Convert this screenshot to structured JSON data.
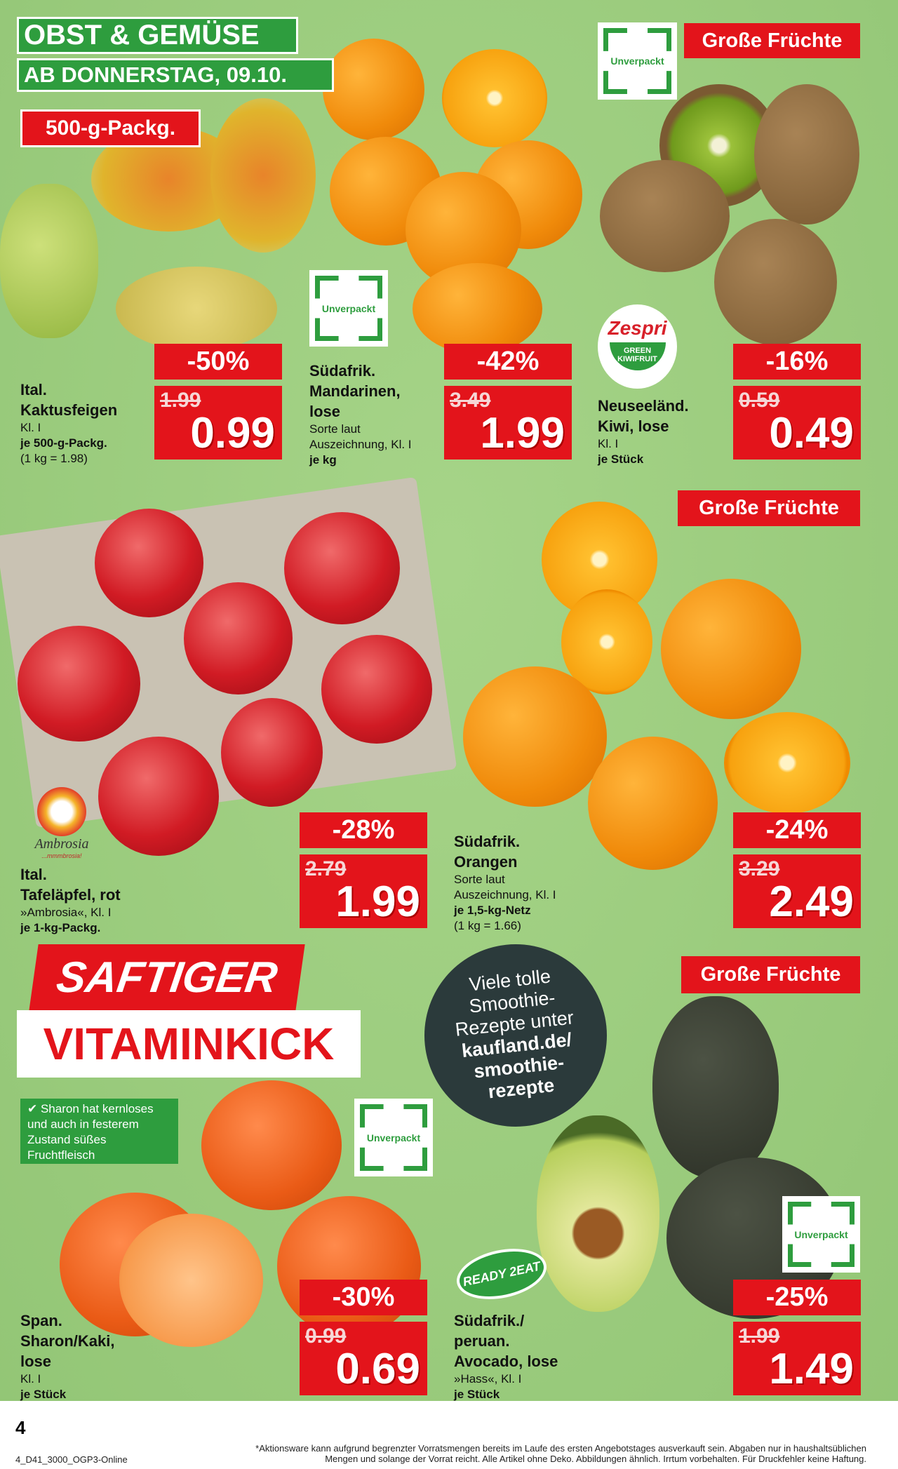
{
  "header": {
    "title": "OBST & GEMÜSE",
    "date": "AB DONNERSTAG, 09.10."
  },
  "badges": {
    "pack": "500-g-Packg.",
    "big_fruit": "Große Früchte",
    "unverpackt": "Unverpackt",
    "zespri": "Zespri",
    "zespri_sub": "GREEN KIWIFRUIT",
    "ambrosia": "Ambrosia",
    "ambrosia_sub": "...mmmbrosia!",
    "ready2eat": "READY 2EAT"
  },
  "products": [
    {
      "lines": [
        "Ital.",
        "Kaktusfeigen"
      ],
      "details": [
        "Kl. I"
      ],
      "unit": [
        "je 500-g-Packg.",
        "(1 kg = 1.98)"
      ],
      "discount": "-50%",
      "old_price": "1.99",
      "price": "0.99"
    },
    {
      "lines": [
        "Südafrik.",
        "Mandarinen,",
        "lose"
      ],
      "details": [
        "Sorte laut",
        "Auszeichnung, Kl. I"
      ],
      "unit": [
        "je kg"
      ],
      "discount": "-42%",
      "old_price": "3.49",
      "price": "1.99"
    },
    {
      "lines": [
        "Neuseeländ.",
        "Kiwi, lose"
      ],
      "details": [
        "Kl. I"
      ],
      "unit": [
        "je Stück"
      ],
      "discount": "-16%",
      "old_price": "0.59",
      "price": "0.49"
    },
    {
      "lines": [
        "Ital.",
        "Tafeläpfel, rot"
      ],
      "details": [
        "»Ambrosia«, Kl. I"
      ],
      "unit": [
        "je 1-kg-Packg."
      ],
      "discount": "-28%",
      "old_price": "2.79",
      "price": "1.99"
    },
    {
      "lines": [
        "Südafrik.",
        "Orangen"
      ],
      "details": [
        "Sorte laut",
        "Auszeichnung, Kl. I"
      ],
      "unit": [
        "je 1,5-kg-Netz",
        "(1 kg = 1.66)"
      ],
      "discount": "-24%",
      "old_price": "3.29",
      "price": "2.49"
    },
    {
      "lines": [
        "Span.",
        "Sharon/Kaki,",
        "lose"
      ],
      "details": [
        "Kl. I"
      ],
      "unit": [
        "je Stück"
      ],
      "discount": "-30%",
      "old_price": "0.99",
      "price": "0.69"
    },
    {
      "lines": [
        "Südafrik./",
        "peruan.",
        "Avocado, lose"
      ],
      "details": [
        "»Hass«, Kl. I"
      ],
      "unit": [
        "je Stück"
      ],
      "discount": "-25%",
      "old_price": "1.99",
      "price": "1.49"
    }
  ],
  "promo": {
    "line1": "SAFTIGER",
    "line2": "VITAMINKICK",
    "sharon_note": "✔ Sharon hat kernloses und auch in festerem Zustand süßes Fruchtfleisch",
    "smoothie": [
      "Viele tolle",
      "Smoothie-",
      "Rezepte unter",
      "kaufland.de/",
      "smoothie-",
      "rezepte"
    ]
  },
  "footer": {
    "page_number": "4",
    "code": "4_D41_3000_OGP3-Online",
    "disclaimer1": "*Aktionsware kann aufgrund begrenzter Vorratsmengen bereits im Laufe des ersten Angebotstages ausverkauft sein. Abgaben nur in haushaltsüblichen",
    "disclaimer2": "Mengen und solange der Vorrat reicht. Alle Artikel ohne Deko. Abbildungen ähnlich. Irrtum vorbehalten. Für Druckfehler keine Haftung."
  },
  "colors": {
    "red": "#e3141b",
    "green": "#2e9d3e",
    "background": "#9fcf82"
  }
}
